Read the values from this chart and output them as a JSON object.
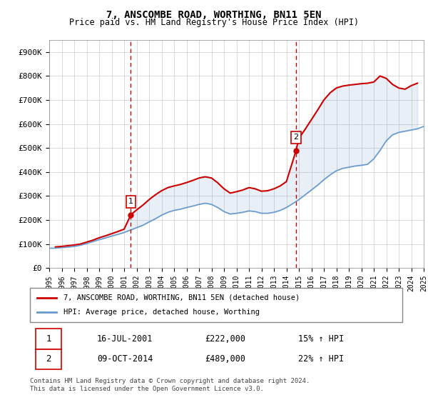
{
  "title": "7, ANSCOMBE ROAD, WORTHING, BN11 5EN",
  "subtitle": "Price paid vs. HM Land Registry's House Price Index (HPI)",
  "property_label": "7, ANSCOMBE ROAD, WORTHING, BN11 5EN (detached house)",
  "hpi_label": "HPI: Average price, detached house, Worthing",
  "transaction1_date": "16-JUL-2001",
  "transaction1_price": "£222,000",
  "transaction1_hpi": "15% ↑ HPI",
  "transaction2_date": "09-OCT-2014",
  "transaction2_price": "£489,000",
  "transaction2_hpi": "22% ↑ HPI",
  "footer": "Contains HM Land Registry data © Crown copyright and database right 2024.\nThis data is licensed under the Open Government Licence v3.0.",
  "property_color": "#cc0000",
  "hpi_color": "#6699cc",
  "transaction_color": "#cc0000",
  "ylim_min": 0,
  "ylim_max": 950000,
  "yticks": [
    0,
    100000,
    200000,
    300000,
    400000,
    500000,
    600000,
    700000,
    800000,
    900000
  ],
  "ytick_labels": [
    "£0",
    "£100K",
    "£200K",
    "£300K",
    "£400K",
    "£500K",
    "£600K",
    "£700K",
    "£800K",
    "£900K"
  ],
  "xmin_year": 1995,
  "xmax_year": 2025,
  "xticks": [
    1995,
    1996,
    1997,
    1998,
    1999,
    2000,
    2001,
    2002,
    2003,
    2004,
    2005,
    2006,
    2007,
    2008,
    2009,
    2010,
    2011,
    2012,
    2013,
    2014,
    2015,
    2016,
    2017,
    2018,
    2019,
    2020,
    2021,
    2022,
    2023,
    2024,
    2025
  ],
  "transaction1_x": 2001.54,
  "transaction1_y": 222000,
  "transaction2_x": 2014.77,
  "transaction2_y": 489000,
  "hpi_x": [
    1995,
    1995.5,
    1996,
    1996.5,
    1997,
    1997.5,
    1998,
    1998.5,
    1999,
    1999.5,
    2000,
    2000.5,
    2001,
    2001.5,
    2002,
    2002.5,
    2003,
    2003.5,
    2004,
    2004.5,
    2005,
    2005.5,
    2006,
    2006.5,
    2007,
    2007.5,
    2008,
    2008.5,
    2009,
    2009.5,
    2010,
    2010.5,
    2011,
    2011.5,
    2012,
    2012.5,
    2013,
    2013.5,
    2014,
    2014.5,
    2015,
    2015.5,
    2016,
    2016.5,
    2017,
    2017.5,
    2018,
    2018.5,
    2019,
    2019.5,
    2020,
    2020.5,
    2021,
    2021.5,
    2022,
    2022.5,
    2023,
    2023.5,
    2024,
    2024.5,
    2025
  ],
  "hpi_y": [
    82000,
    83000,
    85000,
    87000,
    90000,
    95000,
    102000,
    110000,
    118000,
    125000,
    133000,
    140000,
    148000,
    158000,
    168000,
    178000,
    192000,
    205000,
    220000,
    232000,
    240000,
    245000,
    252000,
    258000,
    265000,
    270000,
    265000,
    252000,
    235000,
    225000,
    228000,
    232000,
    238000,
    235000,
    228000,
    228000,
    232000,
    240000,
    252000,
    268000,
    285000,
    305000,
    325000,
    345000,
    368000,
    388000,
    405000,
    415000,
    420000,
    425000,
    428000,
    432000,
    455000,
    490000,
    530000,
    555000,
    565000,
    570000,
    575000,
    580000,
    590000
  ],
  "property_x": [
    1995.5,
    1996,
    1996.5,
    1997,
    1997.5,
    1998,
    1998.5,
    1999,
    1999.5,
    2000,
    2000.5,
    2001,
    2001.54,
    2002,
    2002.5,
    2003,
    2003.5,
    2004,
    2004.5,
    2005,
    2005.5,
    2006,
    2006.5,
    2007,
    2007.5,
    2008,
    2008.5,
    2009,
    2009.5,
    2010,
    2010.5,
    2011,
    2011.5,
    2012,
    2012.5,
    2013,
    2013.5,
    2014,
    2014.77,
    2015,
    2015.5,
    2016,
    2016.5,
    2017,
    2017.5,
    2018,
    2018.5,
    2019,
    2019.5,
    2020,
    2020.5,
    2021,
    2021.5,
    2022,
    2022.5,
    2023,
    2023.5,
    2024,
    2024.5
  ],
  "property_y": [
    88000,
    90000,
    93000,
    96000,
    100000,
    108000,
    116000,
    126000,
    134000,
    143000,
    152000,
    162000,
    222000,
    242000,
    262000,
    285000,
    305000,
    322000,
    335000,
    342000,
    348000,
    356000,
    365000,
    375000,
    380000,
    375000,
    355000,
    330000,
    312000,
    318000,
    325000,
    335000,
    330000,
    320000,
    322000,
    330000,
    342000,
    360000,
    489000,
    540000,
    578000,
    618000,
    658000,
    700000,
    730000,
    750000,
    758000,
    762000,
    765000,
    768000,
    770000,
    775000,
    800000,
    790000,
    765000,
    750000,
    745000,
    760000,
    770000
  ]
}
